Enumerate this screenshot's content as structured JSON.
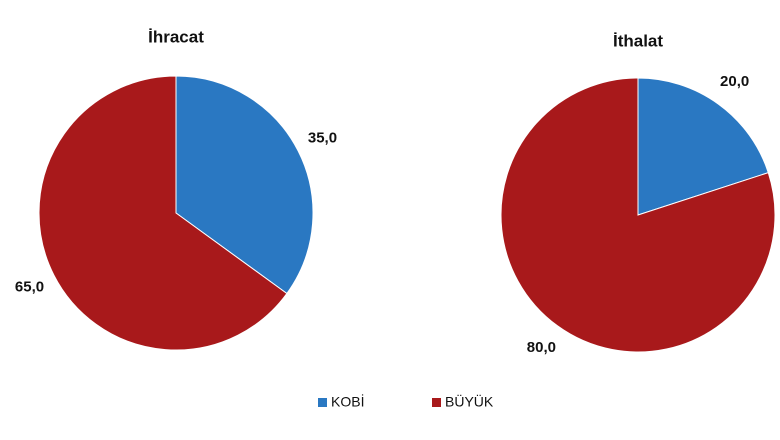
{
  "chart_data": [
    {
      "type": "pie",
      "title": "İhracat",
      "categories": [
        "KOBİ",
        "BÜYÜK"
      ],
      "values": [
        35,
        65
      ],
      "value_labels": [
        "35,0",
        "65,0"
      ],
      "colors": [
        "#2a78c2",
        "#a8191b"
      ],
      "legend": "bottom"
    },
    {
      "type": "pie",
      "title": "İthalat",
      "categories": [
        "KOBİ",
        "BÜYÜK"
      ],
      "values": [
        20,
        80
      ],
      "value_labels": [
        "20,0",
        "80,0"
      ],
      "colors": [
        "#2a78c2",
        "#a8191b"
      ],
      "legend": "bottom"
    }
  ]
}
